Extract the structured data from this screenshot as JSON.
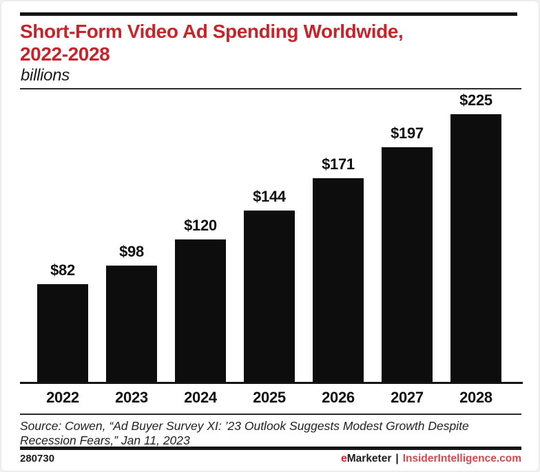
{
  "header": {
    "title_line1": "Short-Form Video Ad Spending Worldwide,",
    "title_line2": "2022-2028",
    "subtitle": "billions"
  },
  "chart_data": {
    "type": "bar",
    "title": "Short-Form Video Ad Spending Worldwide, 2022-2028",
    "unit_label": "billions",
    "categories": [
      "2022",
      "2023",
      "2024",
      "2025",
      "2026",
      "2027",
      "2028"
    ],
    "values": [
      82,
      98,
      120,
      144,
      171,
      197,
      225
    ],
    "value_labels": [
      "$82",
      "$98",
      "$120",
      "$144",
      "$171",
      "$197",
      "$225"
    ],
    "ylim": [
      0,
      225
    ],
    "grid": false,
    "legend": "none",
    "bar_color": "#0d0d0d"
  },
  "footnote": {
    "source": "Source: Cowen, “Ad Buyer Survey XI: ’23 Outlook Suggests Modest Growth Despite Recession Fears,” Jan 11, 2023",
    "chart_id": "280730",
    "brand_e": "e",
    "brand_marketer": "Marketer",
    "brand_separator": "|",
    "brand_site": "InsiderIntelligence.com"
  },
  "colors": {
    "accent_red": "#c7232b",
    "bar_black": "#0d0d0d",
    "site_red": "#d5494e"
  }
}
